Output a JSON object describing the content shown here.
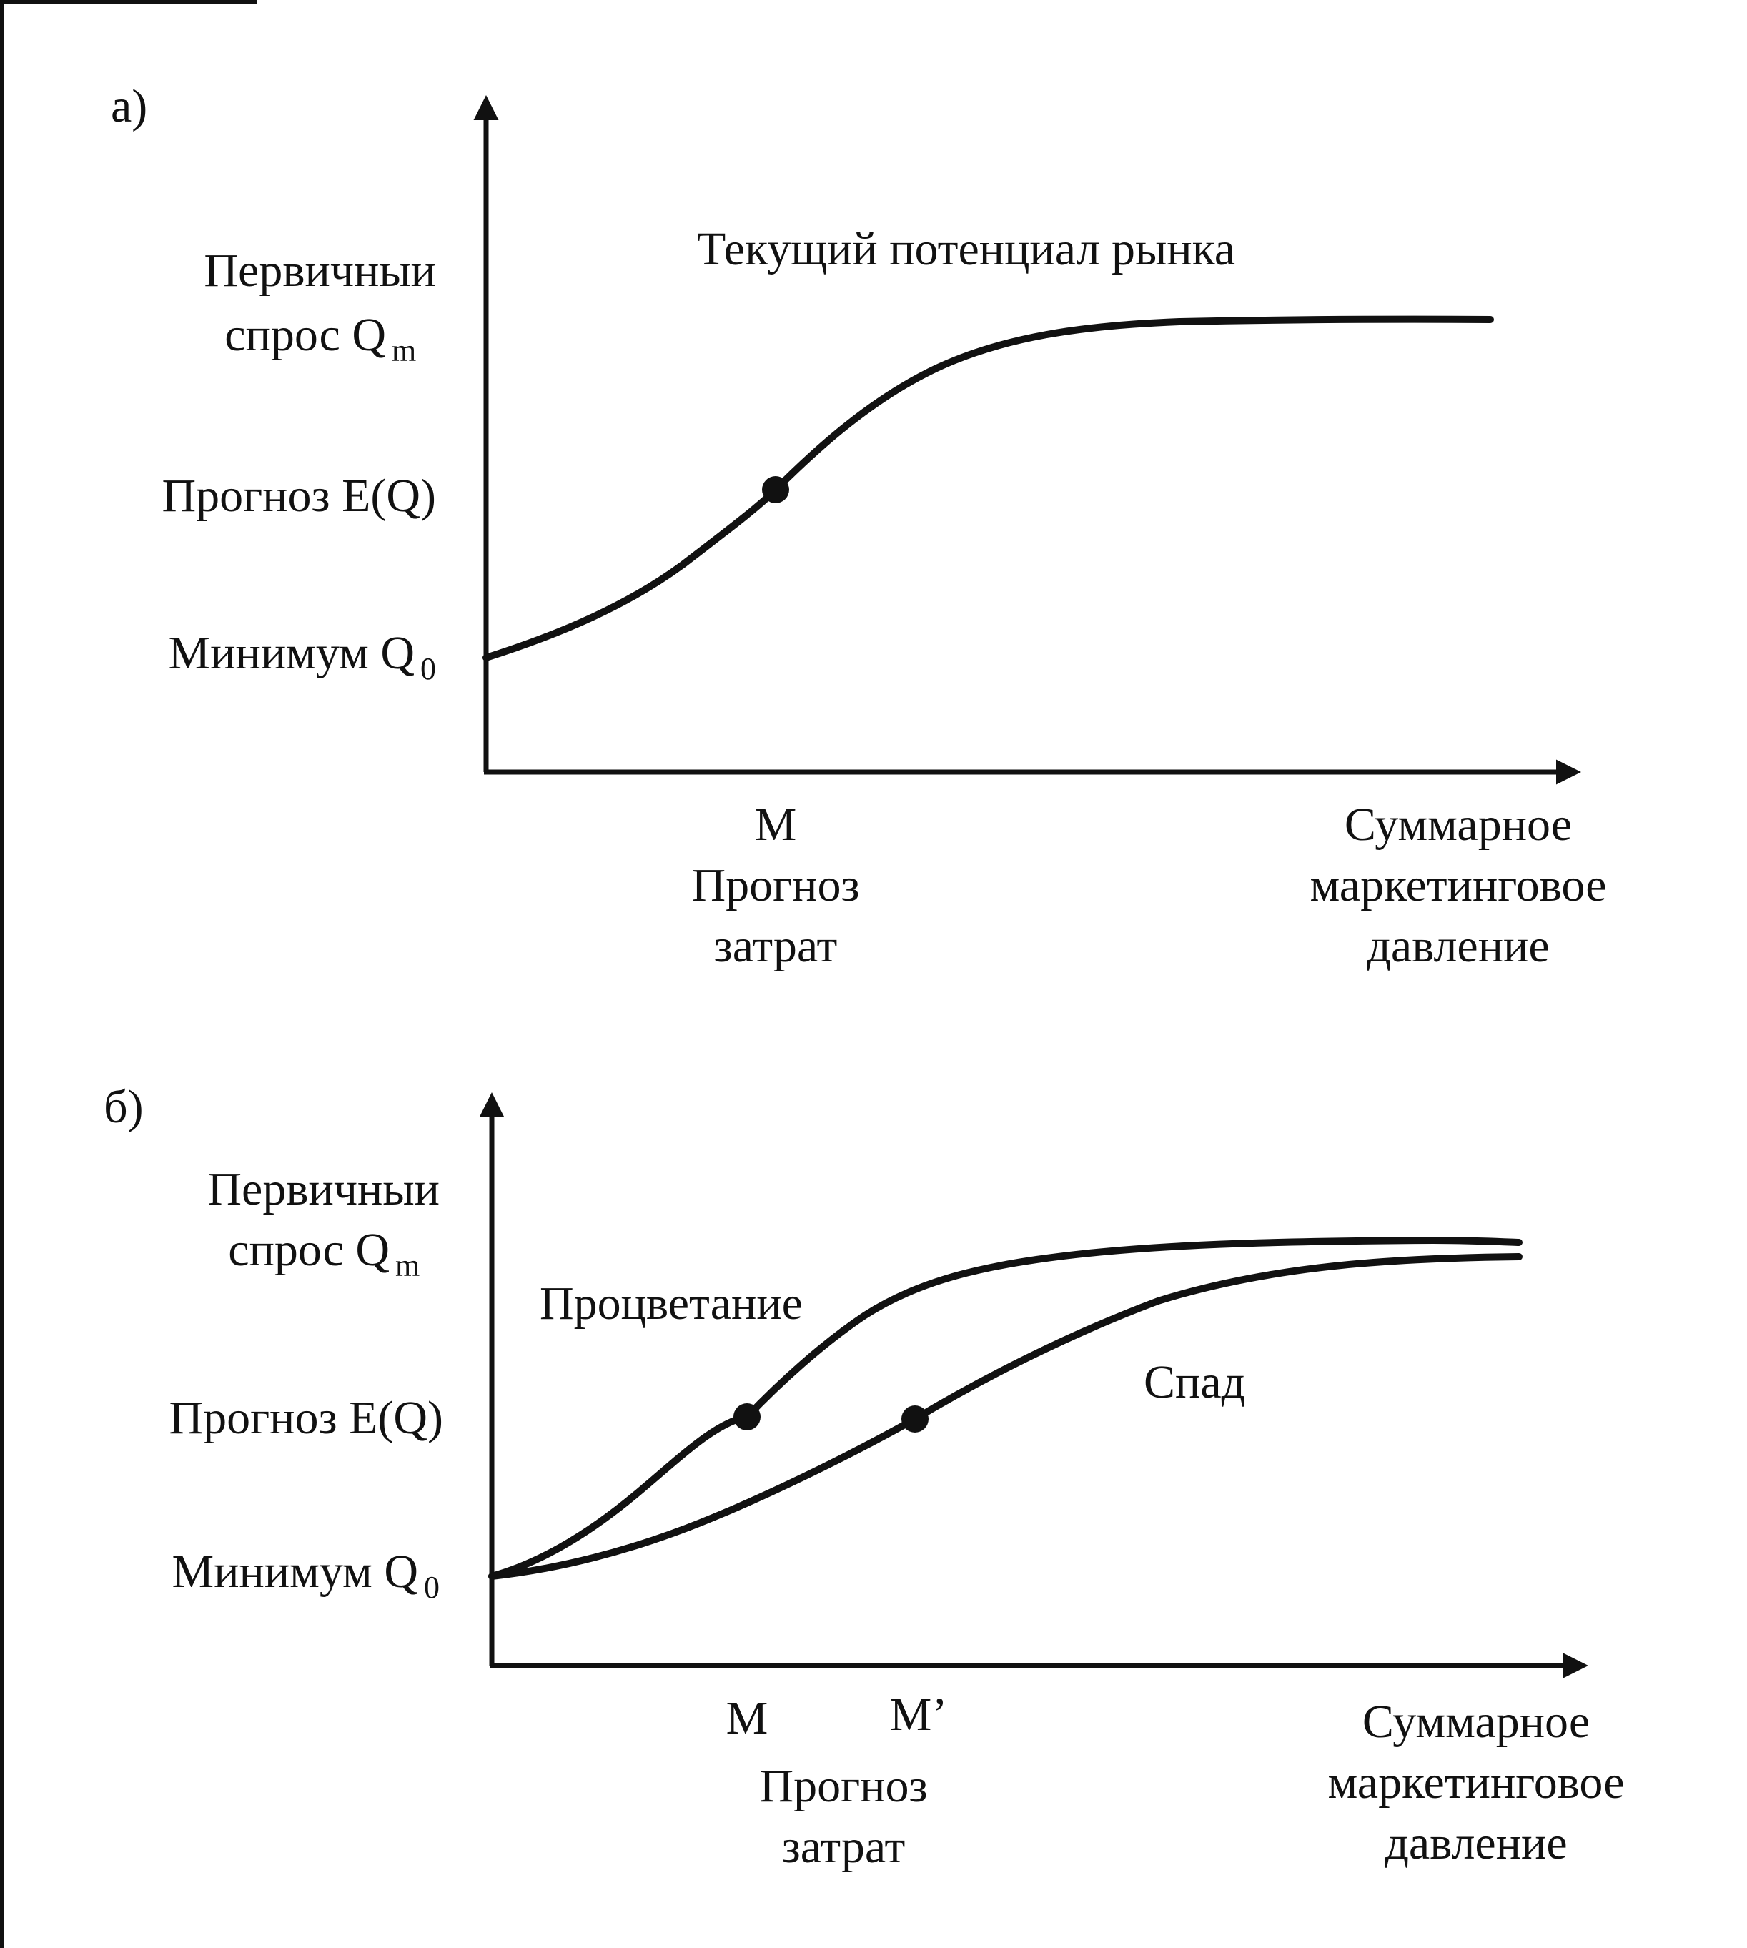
{
  "panel_a": {
    "letter": "a)",
    "y_labels": {
      "primary_line1": "Первичныи",
      "primary_line2": "спрос Q",
      "primary_sub": "m",
      "forecast": "Прогноз E(Q)",
      "minimum": "Минимум Q",
      "minimum_sub": "0"
    },
    "curve_label": "Текущий потенциал рынка",
    "x_point_label": "M",
    "x_point_caption_line1": "Прогноз",
    "x_point_caption_line2": "затрат",
    "x_axis_line1": "Суммарное",
    "x_axis_line2": "маркетинговое",
    "x_axis_line3": "давление"
  },
  "panel_b": {
    "letter": "б)",
    "y_labels": {
      "primary_line1": "Первичныи",
      "primary_line2": "спрос Q",
      "primary_sub": "m",
      "forecast": "Прогноз E(Q)",
      "minimum": "Минимум Q",
      "minimum_sub": "0"
    },
    "curve_upper_label": "Процветание",
    "curve_lower_label": "Спад",
    "x_point_m": "M",
    "x_point_m_prime": "M’",
    "x_point_caption_line1": "Прогноз",
    "x_point_caption_line2": "затрат",
    "x_axis_line1": "Суммарное",
    "x_axis_line2": "маркетинговое",
    "x_axis_line3": "давление"
  },
  "colors": {
    "ink": "#111111",
    "background": "#ffffff"
  }
}
